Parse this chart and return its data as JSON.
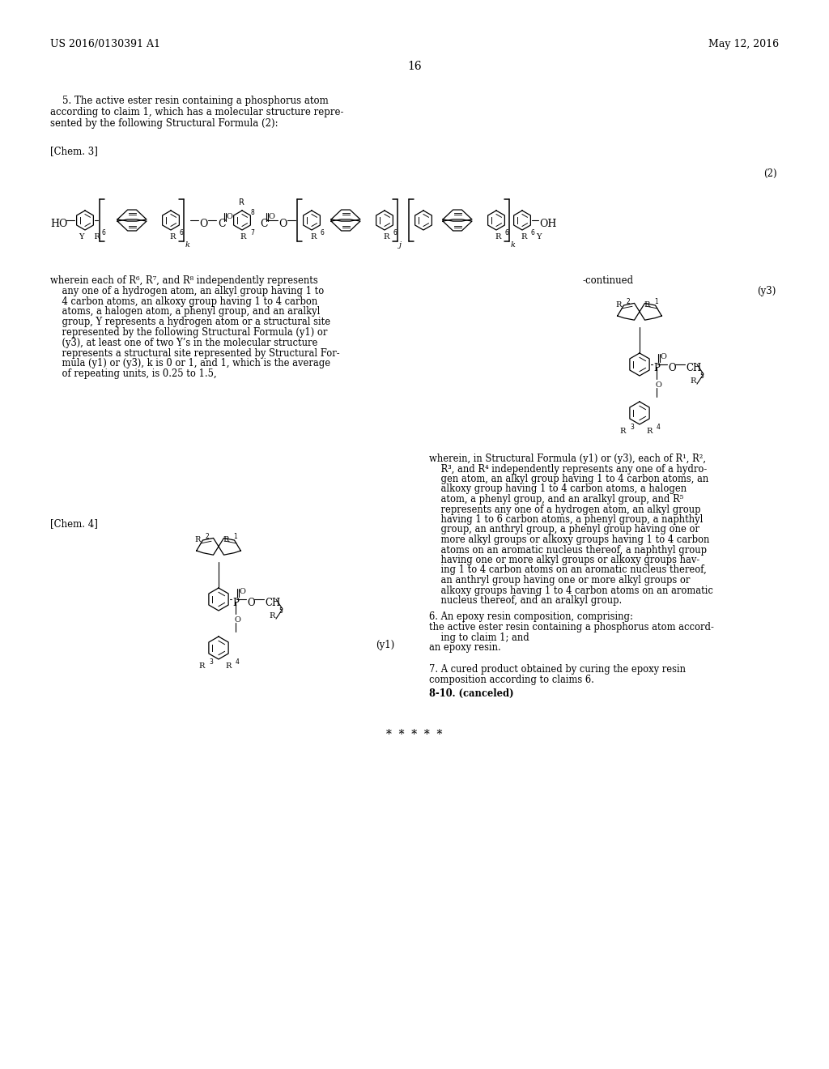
{
  "background_color": "#ffffff",
  "header_left": "US 2016/0130391 A1",
  "header_right": "May 12, 2016",
  "page_number": "16",
  "claim5_line1": "    5. The active ester resin containing a phosphorus atom",
  "claim5_line2": "according to claim 1, which has a molecular structure repre-",
  "claim5_line3": "sented by the following Structural Formula (2):",
  "chem3_label": "[Chem. 3]",
  "formula2_label": "(2)",
  "continued_label": "-continued",
  "y3_label": "(y3)",
  "wherein_left_lines": [
    "wherein each of R⁶, R⁷, and R⁸ independently represents",
    "    any one of a hydrogen atom, an alkyl group having 1 to",
    "    4 carbon atoms, an alkoxy group having 1 to 4 carbon",
    "    atoms, a halogen atom, a phenyl group, and an aralkyl",
    "    group, Y represents a hydrogen atom or a structural site",
    "    represented by the following Structural Formula (y1) or",
    "    (y3), at least one of two Y’s in the molecular structure",
    "    represents a structural site represented by Structural For-",
    "    mula (y1) or (y3), k is 0 or 1, and 1, which is the average",
    "    of repeating units, is 0.25 to 1.5,"
  ],
  "chem4_label": "[Chem. 4]",
  "y1_label": "(y1)",
  "wherein_right_lines": [
    "wherein, in Structural Formula (y1) or (y3), each of R¹, R²,",
    "    R³, and R⁴ independently represents any one of a hydro-",
    "    gen atom, an alkyl group having 1 to 4 carbon atoms, an",
    "    alkoxy group having 1 to 4 carbon atoms, a halogen",
    "    atom, a phenyl group, and an aralkyl group, and R⁵",
    "    represents any one of a hydrogen atom, an alkyl group",
    "    having 1 to 6 carbon atoms, a phenyl group, a naphthyl",
    "    group, an anthryl group, a phenyl group having one or",
    "    more alkyl groups or alkoxy groups having 1 to 4 carbon",
    "    atoms on an aromatic nucleus thereof, a naphthyl group",
    "    having one or more alkyl groups or alkoxy groups hav-",
    "    ing 1 to 4 carbon atoms on an aromatic nucleus thereof,",
    "    an anthryl group having one or more alkyl groups or",
    "    alkoxy groups having 1 to 4 carbon atoms on an aromatic",
    "    nucleus thereof, and an aralkyl group."
  ],
  "claim6_lines": [
    "6. An epoxy resin composition, comprising:",
    "the active ester resin containing a phosphorus atom accord-",
    "    ing to claim 1; and",
    "an epoxy resin."
  ],
  "claim7_lines": [
    "7. A cured product obtained by curing the epoxy resin",
    "composition according to claims 6."
  ],
  "claim8_text": "8-10. (canceled)",
  "stars": "*  *  *  *  *"
}
